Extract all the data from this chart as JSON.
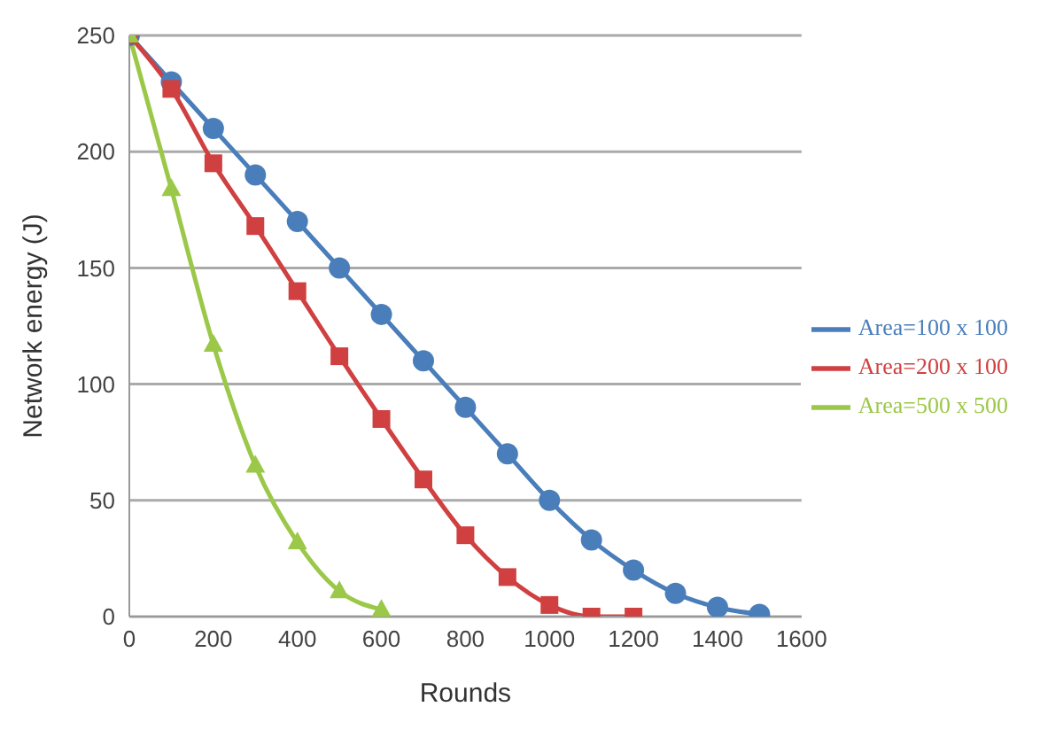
{
  "chart_data": {
    "type": "line",
    "xlabel": "Rounds",
    "ylabel": "Network energy (J)",
    "xlim": [
      0,
      1600
    ],
    "xticks": [
      0,
      200,
      400,
      600,
      800,
      1000,
      1200,
      1400,
      1600
    ],
    "ylim": [
      0,
      250
    ],
    "yticks": [
      0,
      50,
      100,
      150,
      200,
      250
    ],
    "grid": "y",
    "legend": "right",
    "line_style": "solid",
    "series": [
      {
        "name": "Area=100 x 100",
        "color": "#4a7ebb",
        "marker": "circle",
        "x": [
          0,
          100,
          200,
          300,
          400,
          500,
          600,
          700,
          800,
          900,
          1000,
          1100,
          1200,
          1300,
          1400,
          1500
        ],
        "values": [
          250,
          230,
          210,
          190,
          170,
          150,
          130,
          110,
          90,
          70,
          50,
          33,
          20,
          10,
          4,
          1
        ]
      },
      {
        "name": "Area=200 x 100",
        "color": "#d04040",
        "marker": "square",
        "x": [
          0,
          100,
          200,
          300,
          400,
          500,
          600,
          700,
          800,
          900,
          1000,
          1100,
          1200
        ],
        "values": [
          250,
          227,
          195,
          168,
          140,
          112,
          85,
          59,
          35,
          17,
          5,
          0,
          0
        ]
      },
      {
        "name": "Area=500 x 500",
        "color": "#9bc848",
        "marker": "triangle",
        "x": [
          0,
          100,
          200,
          300,
          400,
          500,
          600
        ],
        "values": [
          250,
          184,
          117,
          65,
          32,
          11,
          3
        ]
      }
    ]
  }
}
